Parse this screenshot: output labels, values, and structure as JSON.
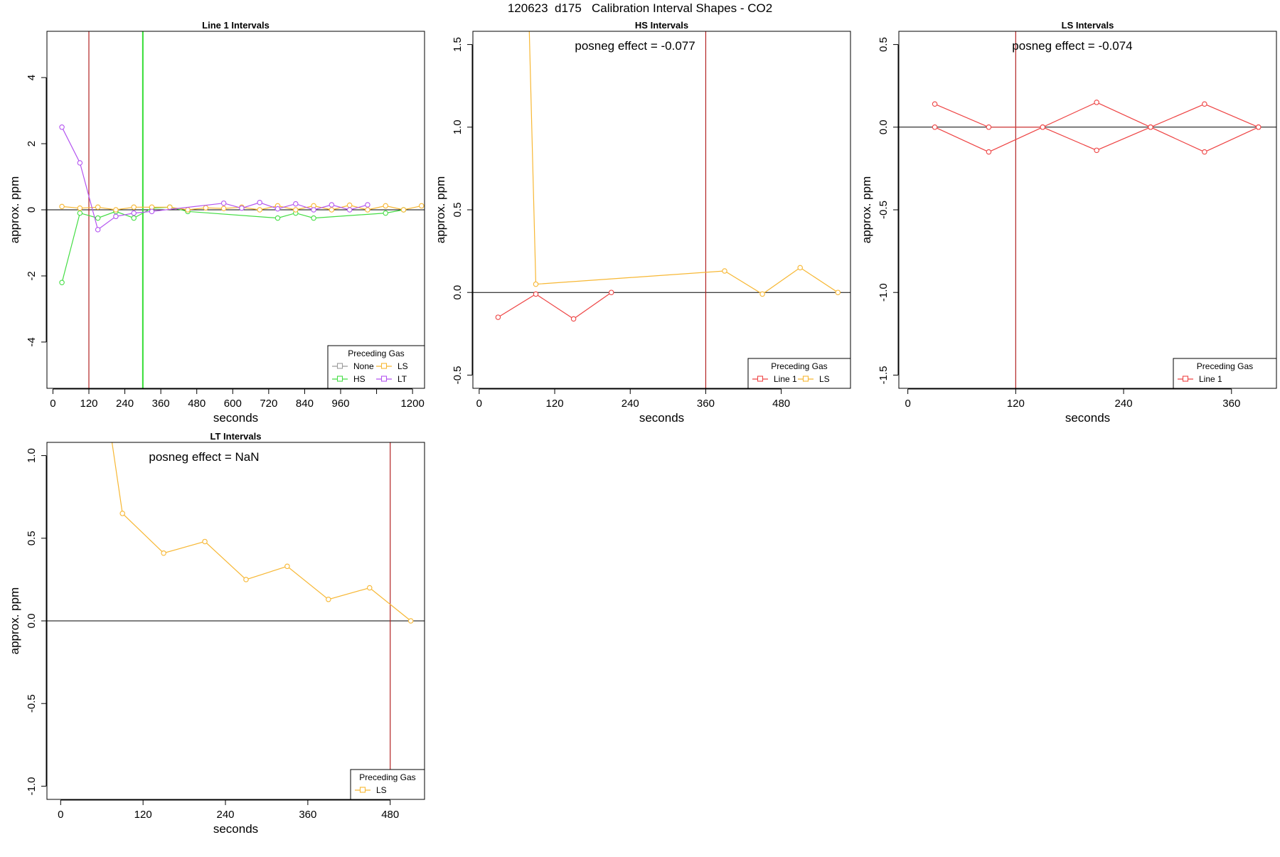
{
  "figure": {
    "title": "120623  d175   Calibration Interval Shapes - CO2"
  },
  "colors": {
    "None": "#9a9a9a",
    "HS": "#44dd44",
    "LS": "#f7b733",
    "LT": "#b455f0",
    "Line 1": "#ee4444",
    "axis": "#000000",
    "vline_red": "#b22222",
    "vline_green": "#33dd33"
  },
  "chart_data": [
    {
      "type": "line",
      "title": "Line 1 Intervals",
      "annotation": "",
      "xlabel": "seconds",
      "ylabel": "approx. ppm",
      "xlim": [
        -20,
        1240
      ],
      "ylim": [
        -5.4,
        5.4
      ],
      "xticks": [
        0,
        120,
        240,
        360,
        480,
        600,
        720,
        840,
        960,
        1080,
        1200
      ],
      "xticklabels": [
        "0",
        "120",
        "240",
        "360",
        "480",
        "600",
        "720",
        "840",
        "960",
        "",
        "1200"
      ],
      "yticks": [
        -4,
        -2,
        0,
        2,
        4
      ],
      "yticklabels": [
        "-4",
        "-2",
        "0",
        "2",
        "4"
      ],
      "hline": 0,
      "vlines": [
        {
          "x": 120,
          "color": "#b22222"
        },
        {
          "x": 300,
          "color": "#33dd33"
        }
      ],
      "legend": {
        "title": "Preceding Gas",
        "position": "bottom-right",
        "ncol": 2,
        "entries": [
          "None",
          "HS",
          "LS",
          "LT"
        ]
      },
      "series": [
        {
          "name": "None",
          "color": "#9a9a9a",
          "x": [],
          "y": []
        },
        {
          "name": "HS",
          "color": "#44dd44",
          "x": [
            30,
            90,
            150,
            210,
            270,
            330,
            390,
            450,
            750,
            810,
            870,
            1110,
            1170
          ],
          "y": [
            -2.2,
            -0.1,
            -0.25,
            -0.05,
            -0.25,
            0.05,
            0.08,
            -0.05,
            -0.25,
            -0.1,
            -0.25,
            -0.1,
            0.0
          ]
        },
        {
          "name": "LS",
          "color": "#f7b733",
          "x": [
            30,
            90,
            150,
            210,
            270,
            330,
            390,
            450,
            510,
            570,
            630,
            690,
            750,
            810,
            870,
            930,
            990,
            1050,
            1110,
            1170,
            1230
          ],
          "y": [
            0.1,
            0.05,
            0.08,
            0.0,
            0.08,
            0.08,
            0.08,
            0.0,
            0.06,
            0.04,
            0.08,
            0.0,
            0.12,
            0.0,
            0.12,
            0.0,
            0.14,
            0.0,
            0.12,
            0.0,
            0.12
          ]
        },
        {
          "name": "LT",
          "color": "#b455f0",
          "x": [
            30,
            90,
            150,
            210,
            270,
            330,
            570,
            630,
            690,
            750,
            810,
            870,
            930,
            990,
            1050
          ],
          "y": [
            2.5,
            1.42,
            -0.6,
            -0.2,
            -0.1,
            -0.05,
            0.2,
            0.05,
            0.22,
            0.03,
            0.18,
            0.0,
            0.15,
            0.0,
            0.15
          ]
        }
      ]
    },
    {
      "type": "line",
      "title": "HS Intervals",
      "annotation": "posneg effect = -0.077",
      "xlabel": "seconds",
      "ylabel": "approx. ppm",
      "xlim": [
        -10,
        590
      ],
      "ylim": [
        -0.58,
        1.58
      ],
      "xticks": [
        0,
        120,
        240,
        360,
        480
      ],
      "xticklabels": [
        "0",
        "120",
        "240",
        "360",
        "480"
      ],
      "yticks": [
        -0.5,
        0.0,
        0.5,
        1.0,
        1.5
      ],
      "yticklabels": [
        "-0.5",
        "0.0",
        "0.5",
        "1.0",
        "1.5"
      ],
      "hline": 0,
      "vlines": [
        {
          "x": 360,
          "color": "#b22222"
        }
      ],
      "legend": {
        "title": "Preceding Gas",
        "position": "bottom-right",
        "ncol": 2,
        "entries": [
          "Line 1",
          "LS"
        ]
      },
      "series": [
        {
          "name": "Line 1",
          "color": "#ee4444",
          "x": [
            30,
            90,
            150,
            210
          ],
          "y": [
            -0.15,
            -0.01,
            -0.16,
            0.0
          ]
        },
        {
          "name": "LS",
          "color": "#f7b733",
          "x": [
            70,
            90,
            390,
            450,
            510,
            570
          ],
          "y": [
            3.0,
            0.05,
            0.13,
            -0.01,
            0.15,
            0.0
          ]
        }
      ]
    },
    {
      "type": "line",
      "title": "LS Intervals",
      "annotation": "posneg effect = -0.074",
      "xlabel": "seconds",
      "ylabel": "approx. ppm",
      "xlim": [
        -10,
        410
      ],
      "ylim": [
        -1.58,
        0.58
      ],
      "xticks": [
        0,
        120,
        240,
        360
      ],
      "xticklabels": [
        "0",
        "120",
        "240",
        "360"
      ],
      "yticks": [
        -1.5,
        -1.0,
        -0.5,
        0.0,
        0.5
      ],
      "yticklabels": [
        "-1.5",
        "-1.0",
        "-0.5",
        "0.0",
        "0.5"
      ],
      "hline": 0,
      "vlines": [
        {
          "x": 120,
          "color": "#b22222"
        }
      ],
      "legend": {
        "title": "Preceding Gas",
        "position": "bottom-right",
        "ncol": 1,
        "entries": [
          "Line 1"
        ]
      },
      "series": [
        {
          "name": "Line 1",
          "color": "#ee4444",
          "x": [
            30,
            90,
            150,
            210,
            270,
            330,
            390
          ],
          "y": [
            0.14,
            0.0,
            0.0,
            0.15,
            0.0,
            0.14,
            0.0
          ]
        },
        {
          "name": "Line 1",
          "color": "#ee4444",
          "x": [
            30,
            90,
            150,
            210,
            270,
            330,
            390
          ],
          "y": [
            0.0,
            -0.15,
            0.0,
            -0.14,
            0.0,
            -0.15,
            0.0
          ]
        }
      ]
    },
    {
      "type": "line",
      "title": "LT Intervals",
      "annotation": "posneg effect = NaN",
      "xlabel": "seconds",
      "ylabel": "approx. ppm",
      "xlim": [
        -20,
        530
      ],
      "ylim": [
        -1.08,
        1.08
      ],
      "xticks": [
        0,
        120,
        240,
        360,
        480
      ],
      "xticklabels": [
        "0",
        "120",
        "240",
        "360",
        "480"
      ],
      "yticks": [
        -1.0,
        -0.5,
        0.0,
        0.5,
        1.0
      ],
      "yticklabels": [
        "-1.0",
        "-0.5",
        "0.0",
        "0.5",
        "1.0"
      ],
      "hline": 0,
      "vlines": [
        {
          "x": 480,
          "color": "#b22222"
        }
      ],
      "legend": {
        "title": "Preceding Gas",
        "position": "bottom-right",
        "ncol": 1,
        "entries": [
          "LS"
        ]
      },
      "series": [
        {
          "name": "LS",
          "color": "#f7b733",
          "x": [
            60,
            90,
            150,
            210,
            270,
            330,
            390,
            450,
            510
          ],
          "y": [
            1.5,
            0.65,
            0.41,
            0.48,
            0.25,
            0.33,
            0.13,
            0.2,
            0.0
          ]
        }
      ]
    }
  ]
}
